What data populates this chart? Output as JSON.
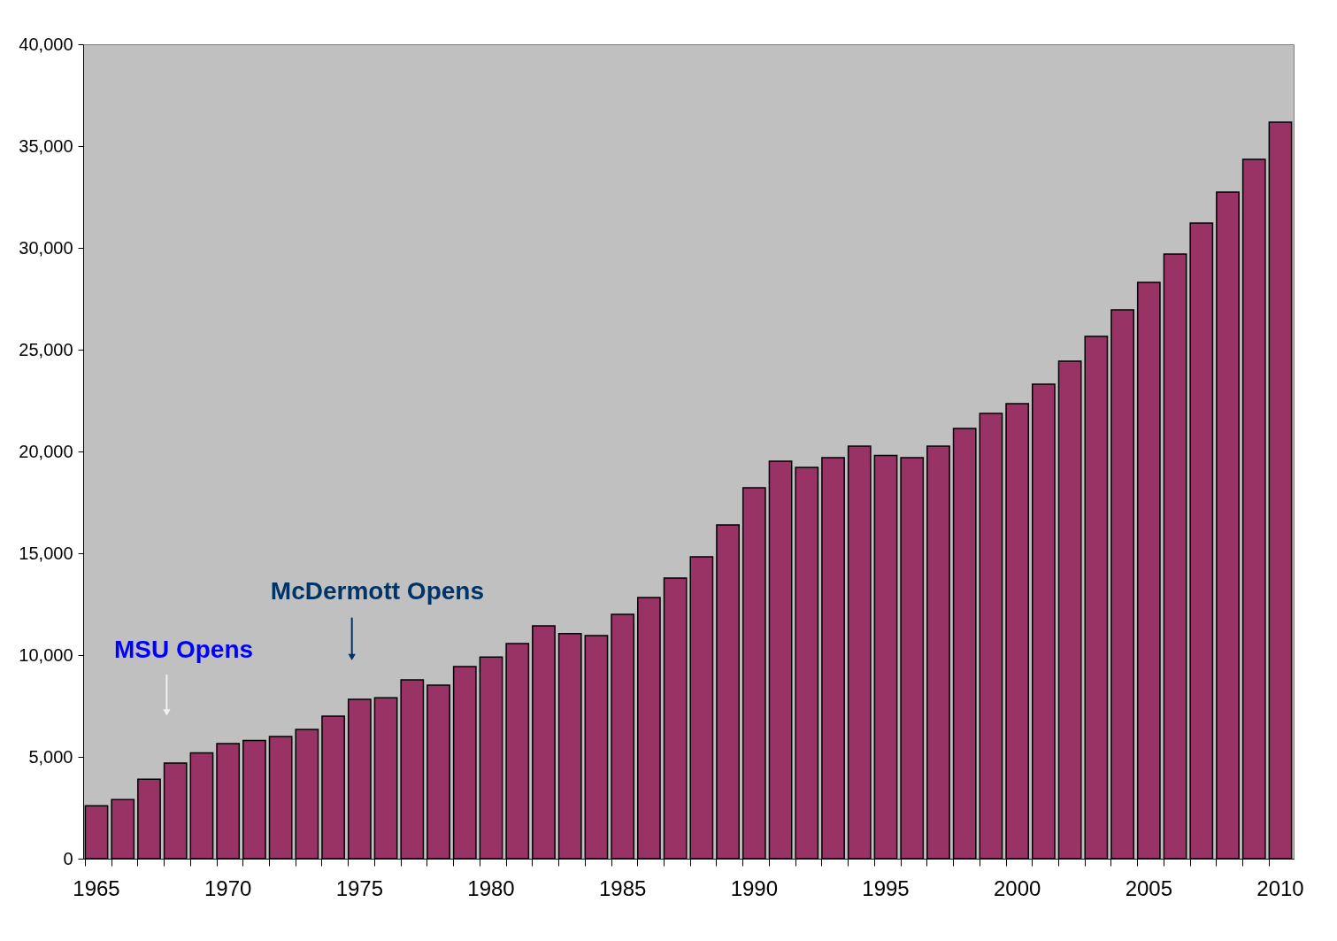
{
  "chart_data": {
    "type": "bar",
    "categories": [
      "1965",
      null,
      null,
      null,
      null,
      "1970",
      null,
      null,
      null,
      null,
      "1975",
      null,
      null,
      null,
      null,
      "1980",
      null,
      null,
      null,
      null,
      "1985",
      null,
      null,
      null,
      null,
      "1990",
      null,
      null,
      null,
      null,
      "1995",
      null,
      null,
      null,
      null,
      "2000",
      null,
      null,
      null,
      null,
      "2005",
      null,
      null,
      null,
      null,
      "2010"
    ],
    "values": [
      2600,
      2900,
      3900,
      4700,
      5200,
      5650,
      5800,
      6000,
      6350,
      7000,
      7830,
      7900,
      8780,
      8520,
      9430,
      9900,
      10570,
      11430,
      11050,
      10960,
      12000,
      12830,
      13780,
      14830,
      16390,
      18220,
      19520,
      19220,
      19700,
      20260,
      19800,
      19700,
      20260,
      21130,
      21870,
      22350,
      23300,
      24430,
      25650,
      26960,
      28300,
      29700,
      31220,
      32740,
      34350,
      36170
    ],
    "color": "#993366",
    "ylim": [
      0,
      40000
    ],
    "yticks": [
      0,
      {
        "value": 5000,
        "label": "5,000"
      },
      {
        "value": 10000,
        "label": "10,000"
      },
      {
        "value": 15000,
        "label": "15,000"
      },
      {
        "value": 20000,
        "label": "20,000"
      },
      {
        "value": 25000,
        "label": "25,000"
      },
      {
        "value": 30000,
        "label": "30,000"
      },
      {
        "value": 35000,
        "label": "35,000"
      },
      {
        "value": 40000,
        "label": "40,000"
      }
    ],
    "grid": false,
    "annotations": [
      "MSU Opens",
      "McDermott Opens"
    ]
  }
}
